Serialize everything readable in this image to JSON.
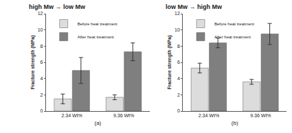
{
  "chart_data": [
    {
      "type": "bar",
      "title": "high Mw → low Mw",
      "xlabel": "(a)",
      "ylabel": "Fracture strength (MPa)",
      "categories": [
        "2.34 Wt%",
        "9.36 Wt%"
      ],
      "series": [
        {
          "name": "Before heat treatment",
          "color": "#dcdcdc",
          "values": [
            1.5,
            1.7
          ],
          "errors": [
            0.6,
            0.3
          ]
        },
        {
          "name": "After heat treatment",
          "color": "#7f7f7f",
          "values": [
            5.0,
            7.3
          ],
          "errors": [
            1.6,
            1.1
          ]
        }
      ],
      "ylim": [
        0,
        12
      ],
      "yticks": [
        0,
        2,
        4,
        6,
        8,
        10,
        12
      ],
      "grid": false,
      "legend": "upper left"
    },
    {
      "type": "bar",
      "title": "low Mw → high Mw",
      "xlabel": "(b)",
      "ylabel": "Fracture strength (MPa)",
      "categories": [
        "2.34 Wt%",
        "9.36 Wt%"
      ],
      "series": [
        {
          "name": "Before heat treatment",
          "color": "#dcdcdc",
          "values": [
            5.3,
            3.6
          ],
          "errors": [
            0.6,
            0.3
          ]
        },
        {
          "name": "After heat treatment",
          "color": "#7f7f7f",
          "values": [
            8.4,
            9.5
          ],
          "errors": [
            0.6,
            1.3
          ]
        }
      ],
      "ylim": [
        0,
        12
      ],
      "yticks": [
        0,
        2,
        4,
        6,
        8,
        10,
        12
      ],
      "grid": false,
      "legend": "upper left"
    }
  ]
}
